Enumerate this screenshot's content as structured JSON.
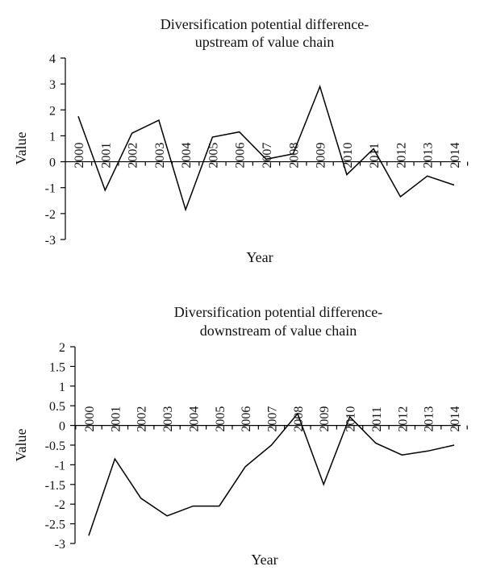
{
  "chart_data": [
    {
      "type": "line",
      "title": "Diversification potential difference-upstream of value chain",
      "title_lines": [
        "Diversification potential difference-",
        "upstream of value chain"
      ],
      "xlabel": "Year",
      "ylabel": "Value",
      "ylim": [
        -3,
        4
      ],
      "yticks": [
        4,
        3,
        2,
        1,
        0,
        -1,
        -2,
        -3
      ],
      "categories": [
        "2000",
        "2001",
        "2002",
        "2003",
        "2004",
        "2005",
        "2006",
        "2007",
        "2008",
        "2009",
        "2010",
        "2011",
        "2012",
        "2013",
        "2014"
      ],
      "series": [
        {
          "values": [
            1.75,
            -1.1,
            1.1,
            1.6,
            -1.85,
            0.95,
            1.15,
            0.1,
            0.3,
            2.9,
            -0.5,
            0.5,
            -1.35,
            -0.55,
            -0.9
          ]
        }
      ],
      "grid": false,
      "legend": "none"
    },
    {
      "type": "line",
      "title": "Diversification potential difference-downstream of value chain",
      "title_lines": [
        "Diversification potential difference-",
        "downstream of value chain"
      ],
      "xlabel": "Year",
      "ylabel": "Value",
      "ylim": [
        -3,
        2
      ],
      "yticks": [
        2,
        1.5,
        1,
        0.5,
        0,
        -0.5,
        -1,
        -1.5,
        -2,
        -2.5,
        -3
      ],
      "categories": [
        "2000",
        "2001",
        "2002",
        "2003",
        "2004",
        "2005",
        "2006",
        "2007",
        "2008",
        "2009",
        "2010",
        "2011",
        "2012",
        "2013",
        "2014"
      ],
      "series": [
        {
          "values": [
            -2.8,
            -0.85,
            -1.85,
            -2.3,
            -2.05,
            -2.05,
            -1.05,
            -0.5,
            0.3,
            -1.5,
            0.22,
            -0.45,
            -0.75,
            -0.65,
            -0.5
          ]
        }
      ],
      "grid": false,
      "legend": "none"
    }
  ]
}
